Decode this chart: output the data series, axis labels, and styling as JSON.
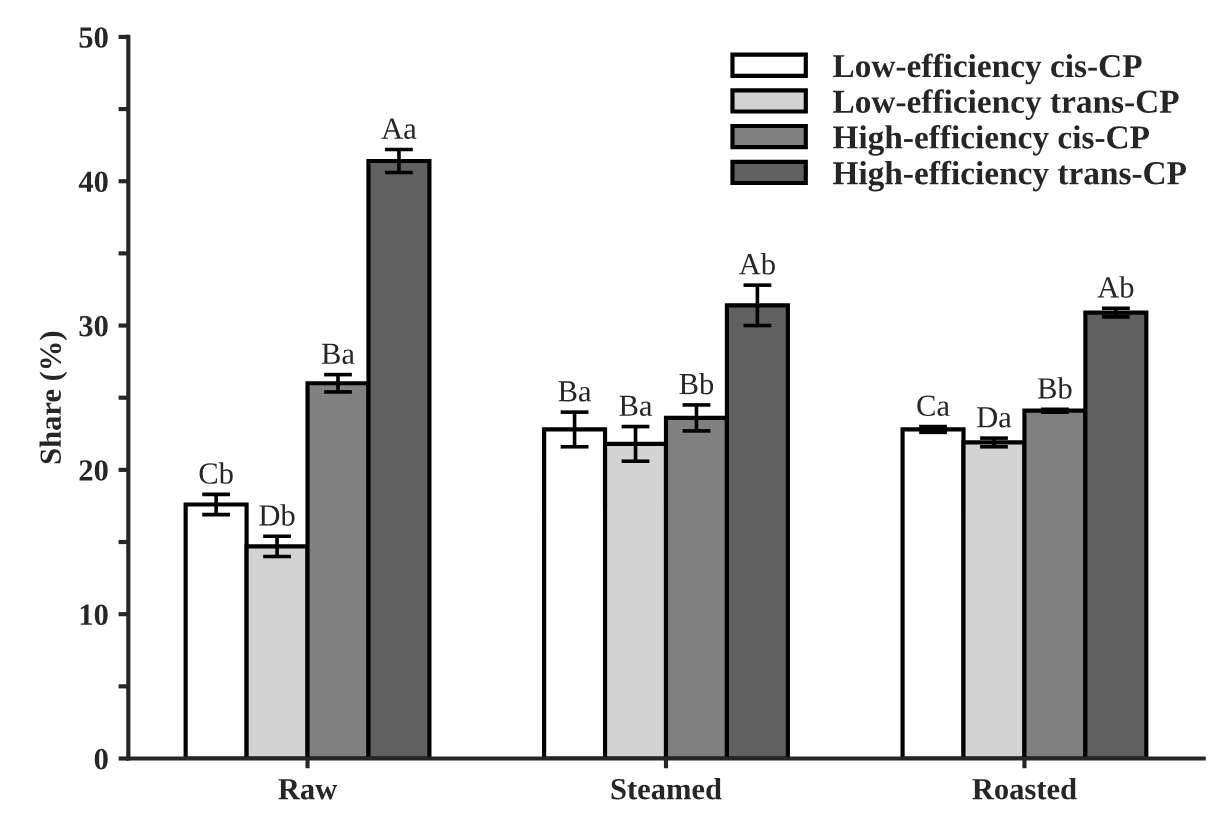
{
  "chart_data": {
    "type": "bar",
    "ylabel": "Share (%)",
    "categories": [
      "Raw",
      "Steamed",
      "Roasted"
    ],
    "series": [
      {
        "name": "Low-efficiency cis-CP",
        "color": "#ffffff",
        "values": [
          17.6,
          22.8,
          22.8
        ],
        "errors": [
          0.7,
          1.2,
          0.2
        ],
        "value_labels": [
          "Cb",
          "Ba",
          "Ca"
        ]
      },
      {
        "name": "Low-efficiency trans-CP",
        "color": "#d3d3d3",
        "values": [
          14.7,
          21.8,
          21.9
        ],
        "errors": [
          0.7,
          1.2,
          0.3
        ],
        "value_labels": [
          "Db",
          "Ba",
          "Da"
        ]
      },
      {
        "name": "High-efficiency cis-CP",
        "color": "#808080",
        "values": [
          26.0,
          23.6,
          24.1
        ],
        "errors": [
          0.6,
          0.9,
          0.1
        ],
        "value_labels": [
          "Ba",
          "Bb",
          "Bb"
        ]
      },
      {
        "name": "High-efficiency trans-CP",
        "color": "#606060",
        "values": [
          41.4,
          31.4,
          30.9
        ],
        "errors": [
          0.8,
          1.4,
          0.3
        ],
        "value_labels": [
          "Aa",
          "Ab",
          "Ab"
        ]
      }
    ],
    "ylim": [
      0,
      50
    ],
    "yticks": [
      0,
      {
        "value": 5,
        "label": null
      },
      10,
      {
        "value": 15,
        "label": null
      },
      20,
      {
        "value": 25,
        "label": null
      },
      30,
      {
        "value": 35,
        "label": null
      },
      40,
      {
        "value": 45,
        "label": null
      },
      50
    ],
    "legend": "top right",
    "grid": false
  }
}
